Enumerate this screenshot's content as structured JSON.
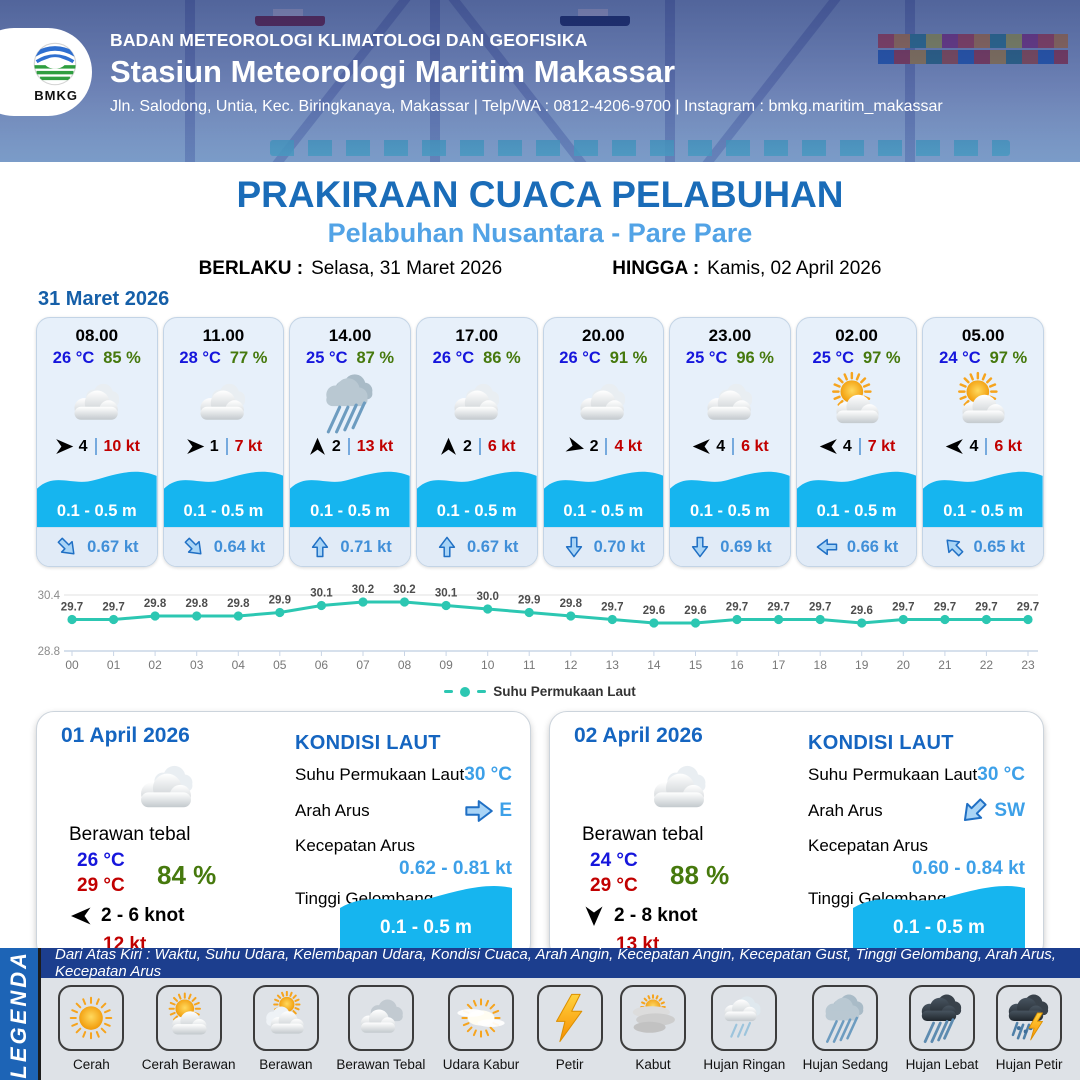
{
  "header": {
    "agency": "BADAN METEOROLOGI KLIMATOLOGI DAN GEOFISIKA",
    "station": "Stasiun Meteorologi Maritim Makassar",
    "contact": "Jln. Salodong, Untia, Kec. Biringkanaya, Makassar | Telp/WA : 0812-4206-9700 | Instagram : bmkg.maritim_makassar",
    "logo_text": "BMKG"
  },
  "title": {
    "main": "PRAKIRAAN CUACA PELABUHAN",
    "sub": "Pelabuhan Nusantara - Pare Pare"
  },
  "validity": {
    "berlaku_label": "BERLAKU :",
    "berlaku_value": "Selasa, 31 Maret 2026",
    "hingga_label": "HINGGA :",
    "hingga_value": "Kamis, 02 April 2026"
  },
  "forecast_date": "31 Maret 2026",
  "hourly": [
    {
      "time": "08.00",
      "temp": "26 °C",
      "humidity": "85 %",
      "icon": "cloud",
      "wind_speed": "4",
      "gust": "10 kt",
      "wind_deg": 0,
      "wave": "0.1 - 0.5 m",
      "current_speed": "0.67 kt",
      "current_deg": 45
    },
    {
      "time": "11.00",
      "temp": "28 °C",
      "humidity": "77 %",
      "icon": "cloud",
      "wind_speed": "1",
      "gust": "7 kt",
      "wind_deg": 0,
      "wave": "0.1 - 0.5 m",
      "current_speed": "0.64 kt",
      "current_deg": 45
    },
    {
      "time": "14.00",
      "temp": "25 °C",
      "humidity": "87 %",
      "icon": "rain_med",
      "wind_speed": "2",
      "gust": "13 kt",
      "wind_deg": -90,
      "wave": "0.1 - 0.5 m",
      "current_speed": "0.71 kt",
      "current_deg": -90
    },
    {
      "time": "17.00",
      "temp": "26 °C",
      "humidity": "86 %",
      "icon": "cloud",
      "wind_speed": "2",
      "gust": "6 kt",
      "wind_deg": -90,
      "wave": "0.1 - 0.5 m",
      "current_speed": "0.67 kt",
      "current_deg": -90
    },
    {
      "time": "20.00",
      "temp": "26 °C",
      "humidity": "91 %",
      "icon": "cloud",
      "wind_speed": "2",
      "gust": "4 kt",
      "wind_deg": 15,
      "wave": "0.1 - 0.5 m",
      "current_speed": "0.70 kt",
      "current_deg": 90
    },
    {
      "time": "23.00",
      "temp": "25 °C",
      "humidity": "96 %",
      "icon": "cloud",
      "wind_speed": "4",
      "gust": "6 kt",
      "wind_deg": 180,
      "wave": "0.1 - 0.5 m",
      "current_speed": "0.69 kt",
      "current_deg": 90
    },
    {
      "time": "02.00",
      "temp": "25 °C",
      "humidity": "97 %",
      "icon": "sun_cloud",
      "wind_speed": "4",
      "gust": "7 kt",
      "wind_deg": 180,
      "wave": "0.1 - 0.5 m",
      "current_speed": "0.66 kt",
      "current_deg": 180
    },
    {
      "time": "05.00",
      "temp": "24 °C",
      "humidity": "97 %",
      "icon": "sun_cloud",
      "wind_speed": "4",
      "gust": "6 kt",
      "wind_deg": 180,
      "wave": "0.1 - 0.5 m",
      "current_speed": "0.65 kt",
      "current_deg": -135
    }
  ],
  "chart_data": {
    "type": "line",
    "series_label": "Suhu Permukaan Laut",
    "x": [
      "00",
      "01",
      "02",
      "03",
      "04",
      "05",
      "06",
      "07",
      "08",
      "09",
      "10",
      "11",
      "12",
      "13",
      "14",
      "15",
      "16",
      "17",
      "18",
      "19",
      "20",
      "21",
      "22",
      "23"
    ],
    "values": [
      29.7,
      29.7,
      29.8,
      29.8,
      29.8,
      29.9,
      30.1,
      30.2,
      30.2,
      30.1,
      30.0,
      29.9,
      29.8,
      29.7,
      29.6,
      29.6,
      29.7,
      29.7,
      29.7,
      29.6,
      29.7,
      29.7,
      29.7,
      29.7
    ],
    "ylim": [
      28.8,
      30.4
    ],
    "line_color": "#2cc7b2",
    "grid": true,
    "legend_position": "bottom"
  },
  "daily": [
    {
      "date": "01 April 2026",
      "icon": "cloud",
      "condition": "Berawan tebal",
      "temp_min": "26 °C",
      "temp_max": "29 °C",
      "humidity": "84 %",
      "wind_range": "2  - 6 knot",
      "gust": "12 kt",
      "wind_deg": 180,
      "sea": {
        "heading": "KONDISI LAUT",
        "sst_label": "Suhu Permukaan Laut",
        "sst": "30 °C",
        "dir_label": "Arah Arus",
        "dir": "E",
        "dir_deg": 0,
        "speed_label": "Kecepatan Arus",
        "speed": "0.62 - 0.81 kt",
        "wave_label": "Tinggi Gelombang",
        "wave": "0.1 - 0.5 m"
      }
    },
    {
      "date": "02 April 2026",
      "icon": "cloud",
      "condition": "Berawan tebal",
      "temp_min": "24 °C",
      "temp_max": "29 °C",
      "humidity": "88 %",
      "wind_range": "2  - 8 knot",
      "gust": "13 kt",
      "wind_deg": 90,
      "sea": {
        "heading": "KONDISI LAUT",
        "sst_label": "Suhu Permukaan Laut",
        "sst": "30 °C",
        "dir_label": "Arah Arus",
        "dir": "SW",
        "dir_deg": 135,
        "speed_label": "Kecepatan Arus",
        "speed": "0.60  - 0.84 kt",
        "wave_label": "Tinggi Gelombang",
        "wave": "0.1 - 0.5 m"
      }
    }
  ],
  "legend": {
    "strip_label": "LEGENDA",
    "description": "Dari Atas Kiri : Waktu, Suhu Udara, Kelembapan Udara, Kondisi Cuaca, Arah Angin, Kecepatan Angin, Kecepatan Gust, Tinggi Gelombang, Arah Arus, Kecepatan Arus",
    "items": [
      {
        "label": "Cerah",
        "icon": "sun"
      },
      {
        "label": "Cerah Berawan",
        "icon": "sun_cloud"
      },
      {
        "label": "Berawan",
        "icon": "cloud_sun"
      },
      {
        "label": "Berawan Tebal",
        "icon": "thick_cloud"
      },
      {
        "label": "Udara Kabur",
        "icon": "haze"
      },
      {
        "label": "Petir",
        "icon": "bolt"
      },
      {
        "label": "Kabut",
        "icon": "fog"
      },
      {
        "label": "Hujan Ringan",
        "icon": "rain_light"
      },
      {
        "label": "Hujan Sedang",
        "icon": "rain_med"
      },
      {
        "label": "Hujan Lebat",
        "icon": "rain_heavy"
      },
      {
        "label": "Hujan Petir",
        "icon": "rain_thunder"
      }
    ]
  }
}
